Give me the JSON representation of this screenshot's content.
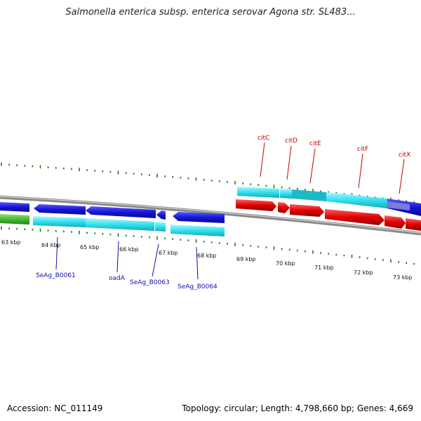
{
  "title": "Salmonella enterica subsp. enterica serovar Agona str. SL483...",
  "footer": {
    "accession": "Accession: NC_011149",
    "summary": "Topology: circular; Length: 4,798,660 bp; Genes: 4,669"
  },
  "scale_labels": [
    "63 kbp",
    "64 kbp",
    "65 kbp",
    "66 kbp",
    "67 kbp",
    "68 kbp",
    "69 kbp",
    "70 kbp",
    "71 kbp",
    "72 kbp",
    "73 kbp"
  ],
  "gene_labels": {
    "top": [
      "citC",
      "citD",
      "citE",
      "citF",
      "citX"
    ],
    "bottom": [
      "SeAg_B0061",
      "oadA",
      "SeAg_B0063",
      "SeAg_B0064"
    ]
  },
  "colors": {
    "blue": "#1515d8",
    "cyan": "#33e0ee",
    "red": "#e00000",
    "green": "#44bb33",
    "backbone": "#888888",
    "ticks": "#2a7a1a",
    "top_label": "#c00000",
    "bottom_label": "#1010aa"
  }
}
